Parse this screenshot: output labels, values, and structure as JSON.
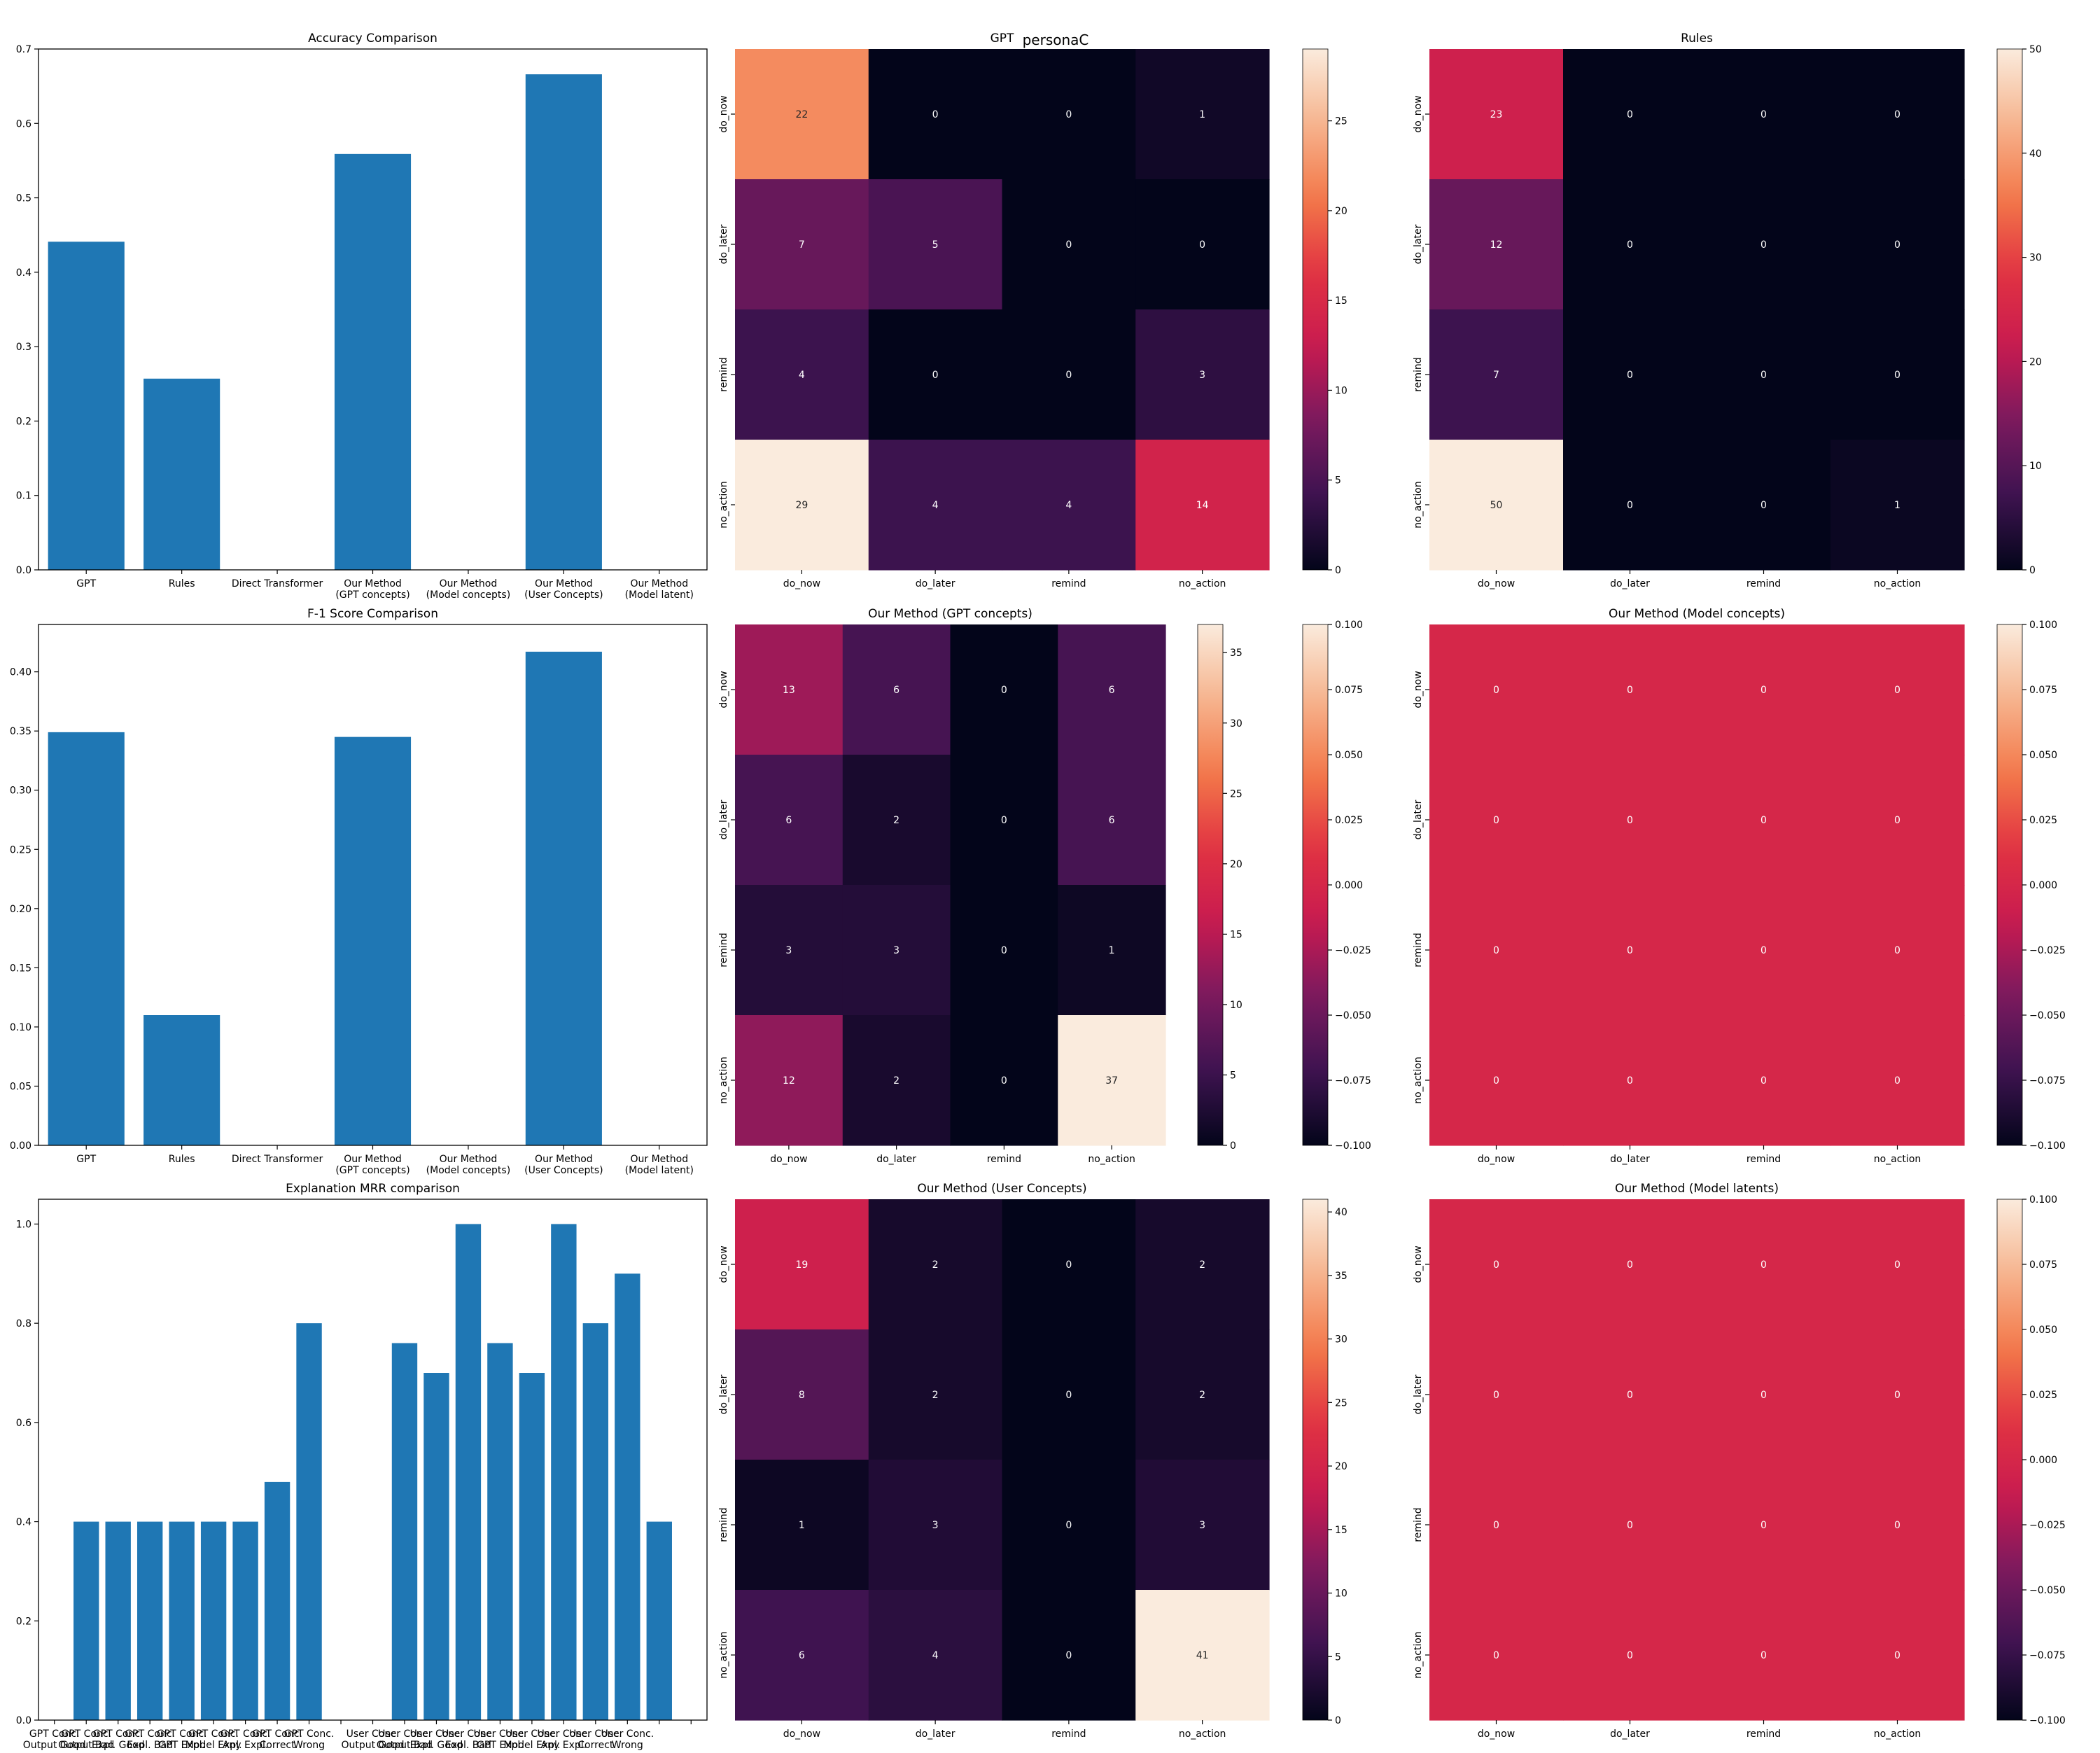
{
  "suptitle": "personaC",
  "colors": {
    "bar": "#1f77b4",
    "heatmap_stops": [
      "#03051a",
      "#3e1350",
      "#7a1a5e",
      "#c81a50",
      "#e13342",
      "#f3794a",
      "#f6b48e",
      "#faebdd"
    ]
  },
  "chart_data": [
    {
      "id": "accuracy",
      "type": "bar",
      "title": "Accuracy Comparison",
      "categories": [
        [
          "GPT"
        ],
        [
          "Rules"
        ],
        [
          "Direct Transformer"
        ],
        [
          "Our Method",
          "(GPT concepts)"
        ],
        [
          "Our Method",
          "(Model concepts)"
        ],
        [
          "Our Method",
          "(User Concepts)"
        ],
        [
          "Our Method",
          "(Model latent)"
        ]
      ],
      "values": [
        0.441,
        0.257,
        0,
        0.559,
        0,
        0.666,
        0
      ],
      "ylim": [
        0,
        0.7
      ],
      "yticks": [
        "0.0",
        "0.1",
        "0.2",
        "0.3",
        "0.4",
        "0.5",
        "0.6",
        "0.7"
      ]
    },
    {
      "id": "f1",
      "type": "bar",
      "title": "F-1 Score Comparison",
      "categories": [
        [
          "GPT"
        ],
        [
          "Rules"
        ],
        [
          "Direct Transformer"
        ],
        [
          "Our Method",
          "(GPT concepts)"
        ],
        [
          "Our Method",
          "(Model concepts)"
        ],
        [
          "Our Method",
          "(User Concepts)"
        ],
        [
          "Our Method",
          "(Model latent)"
        ]
      ],
      "values": [
        0.349,
        0.11,
        0,
        0.345,
        0,
        0.417,
        0
      ],
      "ylim": [
        0,
        0.44
      ],
      "yticks": [
        "0.00",
        "0.05",
        "0.10",
        "0.15",
        "0.20",
        "0.25",
        "0.30",
        "0.35",
        "0.40"
      ]
    },
    {
      "id": "mrr",
      "type": "bar",
      "title": "Explanation MRR comparison",
      "categories": [
        [
          "GPT Conc.",
          "Output Good"
        ],
        [
          "GPT Conc.",
          "Output Bad"
        ],
        [
          "GPT Conc.",
          "Expl. Good"
        ],
        [
          "GPT Conc.",
          "Expl. Bad"
        ],
        [
          "GPT Conc.",
          "GPT Expl."
        ],
        [
          "GPT Conc.",
          "Model Expl."
        ],
        [
          "GPT Conc.",
          "Any Expl."
        ],
        [
          "GPT Conc.",
          "Correct"
        ],
        [
          "GPT Conc.",
          "Wrong"
        ],
        [
          "",
          ""
        ],
        [
          "User Conc.",
          "Output Good"
        ],
        [
          "User Conc.",
          "Output Bad"
        ],
        [
          "User Conc.",
          "Expl. Good"
        ],
        [
          "User Conc.",
          "Expl. Bad"
        ],
        [
          "User Conc.",
          "GPT Expl."
        ],
        [
          "User Conc.",
          "Model Expl."
        ],
        [
          "User Conc.",
          "Any Expl."
        ],
        [
          "User Conc.",
          "Correct"
        ],
        [
          "User Conc.",
          "Wrong"
        ],
        [
          "",
          ""
        ],
        [
          "",
          ""
        ]
      ],
      "values": [
        0,
        0.4,
        0.4,
        0.4,
        0.4,
        0.4,
        0.4,
        0.48,
        0.8,
        0,
        0,
        0.76,
        0.7,
        1.0,
        0.76,
        0.7,
        1.0,
        0.8,
        0.9,
        0.4,
        0
      ],
      "ylim": [
        0,
        1.05
      ],
      "yticks": [
        "0.0",
        "0.2",
        "0.4",
        "0.6",
        "0.8",
        "1.0"
      ]
    },
    {
      "id": "cm_gpt",
      "type": "heatmap",
      "title": "GPT",
      "rows": [
        "do_now",
        "do_later",
        "remind",
        "no_action"
      ],
      "cols": [
        "do_now",
        "do_later",
        "remind",
        "no_action"
      ],
      "matrix": [
        [
          22,
          0,
          0,
          1
        ],
        [
          7,
          5,
          0,
          0
        ],
        [
          4,
          0,
          0,
          3
        ],
        [
          29,
          4,
          4,
          14
        ]
      ],
      "vmin": 0,
      "vmax": 29,
      "colorbar_ticks": [
        "0",
        "5",
        "10",
        "15",
        "20",
        "25"
      ]
    },
    {
      "id": "cm_rules",
      "type": "heatmap",
      "title": "Rules",
      "rows": [
        "do_now",
        "do_later",
        "remind",
        "no_action"
      ],
      "cols": [
        "do_now",
        "do_later",
        "remind",
        "no_action"
      ],
      "matrix": [
        [
          23,
          0,
          0,
          0
        ],
        [
          12,
          0,
          0,
          0
        ],
        [
          7,
          0,
          0,
          0
        ],
        [
          50,
          0,
          0,
          1
        ]
      ],
      "vmin": 0,
      "vmax": 50,
      "colorbar_ticks": [
        "0",
        "10",
        "20",
        "30",
        "40",
        "50"
      ]
    },
    {
      "id": "cm_gpt_concepts",
      "type": "heatmap",
      "title": "Our Method (GPT concepts)",
      "rows": [
        "do_now",
        "do_later",
        "remind",
        "no_action"
      ],
      "cols": [
        "do_now",
        "do_later",
        "remind",
        "no_action"
      ],
      "matrix": [
        [
          13,
          6,
          0,
          6
        ],
        [
          6,
          2,
          0,
          6
        ],
        [
          3,
          3,
          0,
          1
        ],
        [
          12,
          2,
          0,
          37
        ]
      ],
      "vmin": 0,
      "vmax": 37,
      "colorbar_ticks": [
        "0",
        "5",
        "10",
        "15",
        "20",
        "25",
        "30",
        "35"
      ],
      "extra_colorbar_ticks": [
        "0.100",
        "0.075",
        "0.050",
        "0.025",
        "0.000",
        "−0.025",
        "−0.050",
        "−0.075",
        "−0.100"
      ]
    },
    {
      "id": "cm_model_concepts",
      "type": "heatmap",
      "title": "Our Method (Model concepts)",
      "rows": [
        "do_now",
        "do_later",
        "remind",
        "no_action"
      ],
      "cols": [
        "do_now",
        "do_later",
        "remind",
        "no_action"
      ],
      "matrix": [
        [
          0,
          0,
          0,
          0
        ],
        [
          0,
          0,
          0,
          0
        ],
        [
          0,
          0,
          0,
          0
        ],
        [
          0,
          0,
          0,
          0
        ]
      ],
      "vmin": -0.1,
      "vmax": 0.1,
      "colorbar_ticks": [
        "0.100",
        "0.075",
        "0.050",
        "0.025",
        "0.000",
        "−0.025",
        "−0.050",
        "−0.075",
        "−0.100"
      ]
    },
    {
      "id": "cm_user_concepts",
      "type": "heatmap",
      "title": "Our Method (User Concepts)",
      "rows": [
        "do_now",
        "do_later",
        "remind",
        "no_action"
      ],
      "cols": [
        "do_now",
        "do_later",
        "remind",
        "no_action"
      ],
      "matrix": [
        [
          19,
          2,
          0,
          2
        ],
        [
          8,
          2,
          0,
          2
        ],
        [
          1,
          3,
          0,
          3
        ],
        [
          6,
          4,
          0,
          41
        ]
      ],
      "vmin": 0,
      "vmax": 41,
      "colorbar_ticks": [
        "0",
        "5",
        "10",
        "15",
        "20",
        "25",
        "30",
        "35",
        "40"
      ]
    },
    {
      "id": "cm_model_latents",
      "type": "heatmap",
      "title": "Our Method (Model latents)",
      "rows": [
        "do_now",
        "do_later",
        "remind",
        "no_action"
      ],
      "cols": [
        "do_now",
        "do_later",
        "remind",
        "no_action"
      ],
      "matrix": [
        [
          0,
          0,
          0,
          0
        ],
        [
          0,
          0,
          0,
          0
        ],
        [
          0,
          0,
          0,
          0
        ],
        [
          0,
          0,
          0,
          0
        ]
      ],
      "vmin": -0.1,
      "vmax": 0.1,
      "colorbar_ticks": [
        "0.100",
        "0.075",
        "0.050",
        "0.025",
        "0.000",
        "−0.025",
        "−0.050",
        "−0.075",
        "−0.100"
      ]
    }
  ]
}
